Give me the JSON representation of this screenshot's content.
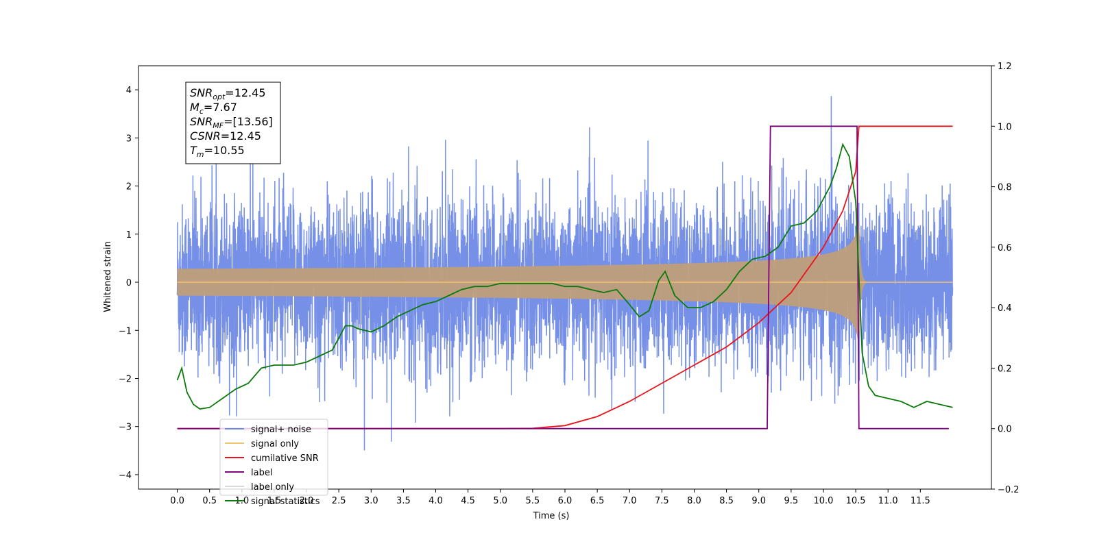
{
  "chart_data": {
    "type": "line",
    "xlabel": "Time (s)",
    "ylabel": "Whitened strain",
    "xlim": [
      -0.6,
      12.6
    ],
    "ylim": [
      -4.3,
      4.5
    ],
    "y2lim": [
      -0.2,
      1.2
    ],
    "x_ticks": [
      "0.0",
      "0.5",
      "1.0",
      "1.5",
      "2.0",
      "2.5",
      "3.0",
      "3.5",
      "4.0",
      "4.5",
      "5.0",
      "5.5",
      "6.0",
      "6.5",
      "7.0",
      "7.5",
      "8.0",
      "8.5",
      "9.0",
      "9.5",
      "10.0",
      "10.5",
      "11.0",
      "11.5"
    ],
    "y_ticks": [
      "4",
      "3",
      "2",
      "1",
      "0",
      "−1",
      "−2",
      "−3",
      "−4"
    ],
    "y2_ticks": [
      "1.2",
      "1.0",
      "0.8",
      "0.6",
      "0.4",
      "0.2",
      "0.0",
      "−0.2"
    ],
    "annotation_lines": [
      {
        "base": "SNR",
        "sub": "opt",
        "value": "=12.45"
      },
      {
        "base": "M",
        "sub": "c",
        "value": "=7.67"
      },
      {
        "base": "SNR",
        "sub": "MF",
        "value": "=[13.56]"
      },
      {
        "base": "CSNR",
        "sub": "",
        "value": "=12.45"
      },
      {
        "base": "T",
        "sub": "m",
        "value": "=10.55"
      }
    ],
    "legend_position": "lower-left",
    "series": [
      {
        "name": "signal+ noise",
        "color": "#6f8ae6",
        "axis": "left",
        "noise_std": 0.85,
        "x_range": [
          0.0,
          12.0
        ]
      },
      {
        "name": "signal only",
        "color": "#f5c070",
        "axis": "left",
        "chirp_end": 10.55,
        "peak_amplitude": 1.5,
        "x_range": [
          0.0,
          12.0
        ]
      },
      {
        "name": "cumilative SNR",
        "color": "#e8141a",
        "axis": "right",
        "x": [
          0.0,
          5.0,
          5.5,
          6.0,
          6.5,
          7.0,
          7.5,
          8.0,
          8.5,
          9.0,
          9.5,
          10.0,
          10.3,
          10.5,
          10.55,
          12.0
        ],
        "y": [
          0.0,
          0.0,
          0.001,
          0.01,
          0.04,
          0.09,
          0.15,
          0.21,
          0.27,
          0.35,
          0.45,
          0.6,
          0.72,
          0.85,
          1.0,
          1.0
        ]
      },
      {
        "name": "label",
        "color": "#800080",
        "axis": "right",
        "x": [
          0.0,
          9.13,
          9.18,
          10.52,
          10.55,
          11.94
        ],
        "y": [
          0.0,
          0.0,
          1.0,
          1.0,
          0.0,
          0.0
        ]
      },
      {
        "name": "label only",
        "color": "#d9d9d9",
        "axis": "right",
        "x": [],
        "y": []
      },
      {
        "name": "signal statistics",
        "color": "#0a7a0a",
        "axis": "right",
        "x": [
          0.0,
          0.07,
          0.15,
          0.25,
          0.35,
          0.5,
          0.7,
          0.9,
          1.1,
          1.3,
          1.5,
          1.8,
          2.0,
          2.2,
          2.4,
          2.5,
          2.6,
          2.7,
          2.8,
          3.0,
          3.2,
          3.4,
          3.6,
          3.8,
          4.0,
          4.2,
          4.4,
          4.6,
          4.8,
          5.0,
          5.2,
          5.4,
          5.6,
          5.8,
          6.0,
          6.2,
          6.4,
          6.6,
          6.8,
          7.0,
          7.15,
          7.3,
          7.45,
          7.55,
          7.7,
          7.9,
          8.1,
          8.3,
          8.5,
          8.7,
          8.9,
          9.1,
          9.3,
          9.5,
          9.7,
          9.9,
          10.1,
          10.2,
          10.3,
          10.4,
          10.5,
          10.6,
          10.7,
          10.8,
          11.0,
          11.2,
          11.4,
          11.6,
          11.8,
          12.0
        ],
        "y": [
          0.16,
          0.2,
          0.12,
          0.08,
          0.065,
          0.07,
          0.1,
          0.13,
          0.15,
          0.2,
          0.21,
          0.21,
          0.22,
          0.24,
          0.26,
          0.3,
          0.34,
          0.34,
          0.33,
          0.32,
          0.34,
          0.37,
          0.39,
          0.41,
          0.42,
          0.44,
          0.46,
          0.47,
          0.47,
          0.48,
          0.48,
          0.48,
          0.48,
          0.48,
          0.47,
          0.47,
          0.46,
          0.45,
          0.46,
          0.41,
          0.37,
          0.39,
          0.49,
          0.52,
          0.44,
          0.4,
          0.4,
          0.42,
          0.46,
          0.52,
          0.56,
          0.57,
          0.6,
          0.67,
          0.68,
          0.72,
          0.8,
          0.86,
          0.94,
          0.9,
          0.75,
          0.25,
          0.14,
          0.11,
          0.1,
          0.09,
          0.07,
          0.09,
          0.08,
          0.07
        ]
      }
    ]
  }
}
